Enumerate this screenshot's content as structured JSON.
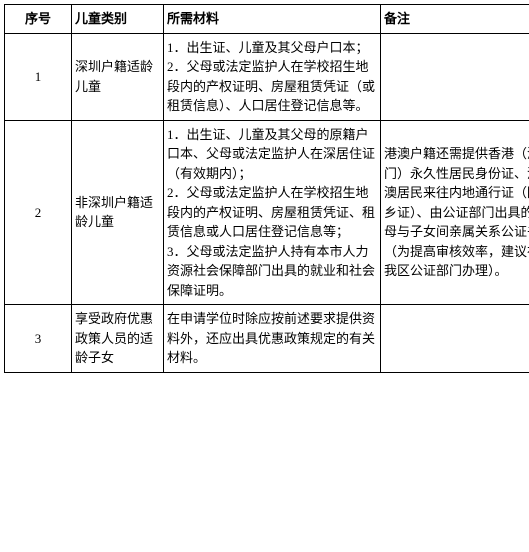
{
  "table": {
    "headers": {
      "index": "序号",
      "category": "儿童类别",
      "materials": "所需材料",
      "remarks": "备注"
    },
    "rows": [
      {
        "index": "1",
        "category": "深圳户籍适龄儿童",
        "materials": "1．出生证、儿童及其父母户口本；\n2．父母或法定监护人在学校招生地段内的产权证明、房屋租赁凭证（或租赁信息）、人口居住登记信息等。",
        "remarks": ""
      },
      {
        "index": "2",
        "category": "非深圳户籍适龄儿童",
        "materials": "1．出生证、儿童及其父母的原籍户口本、父母或法定监护人在深居住证（有效期内）；\n2．父母或法定监护人在学校招生地段内的产权证明、房屋租赁凭证、租赁信息或人口居住登记信息等；\n3．父母或法定监护人持有本市人力资源社会保障部门出具的就业和社会保障证明。",
        "remarks": "港澳户籍还需提供香港（澳门）永久性居民身份证、港澳居民来往内地通行证（回乡证）、由公证部门出具的父母与子女间亲属关系公证书（为提高审核效率，建议在我区公证部门办理）。"
      },
      {
        "index": "3",
        "category": "享受政府优惠政策人员的适龄子女",
        "materials": "在申请学位时除应按前述要求提供资料外，还应出具优惠政策规定的有关材料。",
        "remarks": ""
      }
    ]
  }
}
